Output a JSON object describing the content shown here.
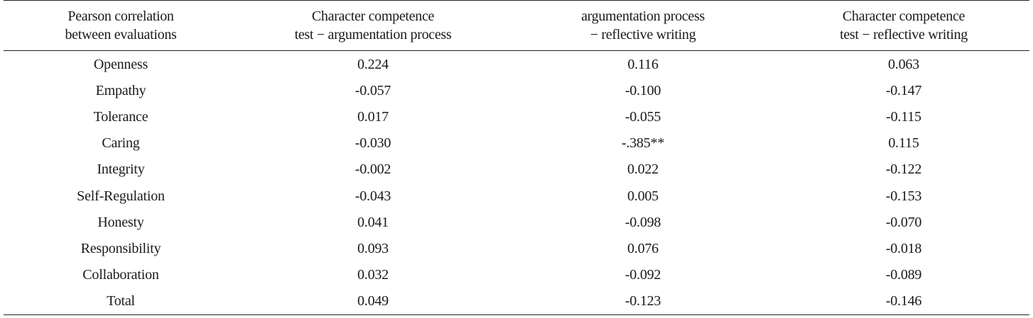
{
  "headers": [
    [
      "Pearson correlation",
      "between evaluations"
    ],
    [
      "Character competence",
      "test − argumentation process"
    ],
    [
      "argumentation process",
      "− reflective writing"
    ],
    [
      "Character competence",
      "test − reflective writing"
    ]
  ],
  "rows": [
    [
      "Openness",
      "0.224",
      "0.116",
      "0.063"
    ],
    [
      "Empathy",
      "-0.057",
      "-0.100",
      "-0.147"
    ],
    [
      "Tolerance",
      "0.017",
      "-0.055",
      "-0.115"
    ],
    [
      "Caring",
      "-0.030",
      "-.385**",
      "0.115"
    ],
    [
      "Integrity",
      "-0.002",
      "0.022",
      "-0.122"
    ],
    [
      "Self-Regulation",
      "-0.043",
      "0.005",
      "-0.153"
    ],
    [
      "Honesty",
      "0.041",
      "-0.098",
      "-0.070"
    ],
    [
      "Responsibility",
      "0.093",
      "0.076",
      "-0.018"
    ],
    [
      "Collaboration",
      "0.032",
      "-0.092",
      "-0.089"
    ],
    [
      "Total",
      "0.049",
      "-0.123",
      "-0.146"
    ]
  ]
}
